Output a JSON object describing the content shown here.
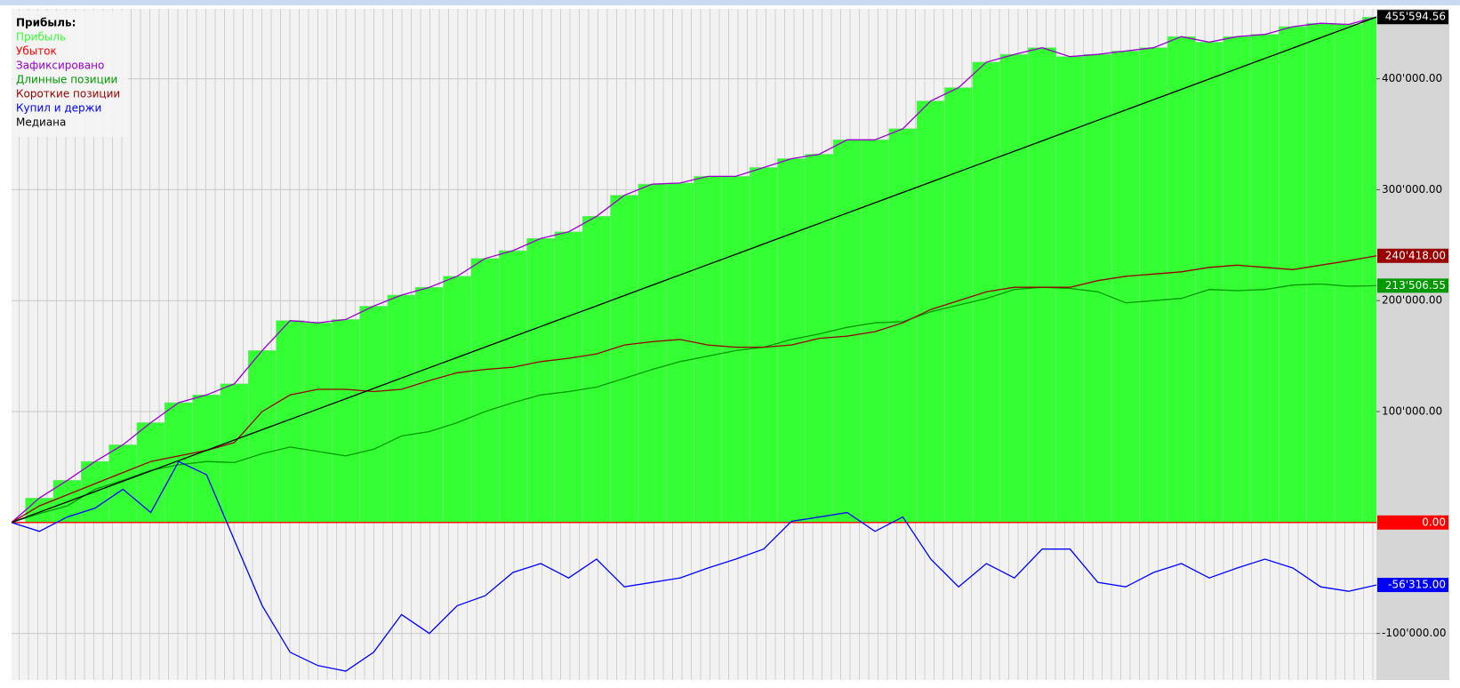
{
  "chart_data": {
    "type": "line",
    "legend_title": "Прибыль:",
    "legend": "top-left",
    "grid": true,
    "ylim": [
      -142000,
      463000
    ],
    "yticks": [
      {
        "value": -100000,
        "label": "-100'000.00"
      },
      {
        "value": 100000,
        "label": "100'000.00"
      },
      {
        "value": 200000,
        "label": "200'000.00"
      },
      {
        "value": 300000,
        "label": "300'000.00"
      },
      {
        "value": 400000,
        "label": "400'000.00"
      }
    ],
    "series": [
      {
        "name": "Прибыль",
        "color": "#33ff33",
        "style": "bars",
        "values": [
          0,
          22000,
          38000,
          55000,
          70000,
          90000,
          108000,
          115000,
          125000,
          155000,
          182000,
          180000,
          183000,
          195000,
          205000,
          212000,
          222000,
          238000,
          245000,
          256000,
          262000,
          276000,
          295000,
          305000,
          306000,
          312000,
          312000,
          320000,
          328000,
          332000,
          345000,
          345000,
          355000,
          380000,
          392000,
          415000,
          422000,
          428000,
          420000,
          422000,
          425000,
          428000,
          438000,
          433000,
          438000,
          440000,
          447000,
          450000,
          449000,
          455594.56
        ]
      },
      {
        "name": "Убыток",
        "color": "#ff0000",
        "style": "line",
        "end_label": "0.00",
        "values": [
          0,
          0,
          0,
          0,
          0,
          0,
          0,
          0,
          0,
          0,
          0,
          0,
          0,
          0,
          0,
          0,
          0,
          0,
          0,
          0,
          0,
          0,
          0,
          0,
          0,
          0,
          0,
          0,
          0,
          0,
          0,
          0,
          0,
          0,
          0,
          0,
          0,
          0,
          0,
          0,
          0,
          0,
          0,
          0,
          0,
          0,
          0,
          0,
          0,
          0
        ]
      },
      {
        "name": "Зафиксировано",
        "color": "#9900cc",
        "style": "line",
        "values": [
          0,
          22000,
          38000,
          55000,
          70000,
          90000,
          108000,
          115000,
          125000,
          155000,
          182000,
          180000,
          183000,
          195000,
          205000,
          212000,
          222000,
          238000,
          245000,
          256000,
          262000,
          276000,
          295000,
          305000,
          306000,
          312000,
          312000,
          320000,
          328000,
          332000,
          345000,
          345000,
          355000,
          380000,
          392000,
          415000,
          422000,
          428000,
          420000,
          422000,
          425000,
          428000,
          438000,
          433000,
          438000,
          440000,
          447000,
          450000,
          449000,
          455594.56
        ]
      },
      {
        "name": "Длинные позиции",
        "color": "#009900",
        "style": "line",
        "end_label": "213'506.55",
        "values": [
          0,
          8000,
          15000,
          30000,
          38000,
          47000,
          52000,
          55000,
          54000,
          62000,
          68000,
          64000,
          60000,
          66000,
          78000,
          82000,
          90000,
          100000,
          108000,
          115000,
          118000,
          122000,
          130000,
          138000,
          145000,
          150000,
          155000,
          158000,
          165000,
          170000,
          176000,
          180000,
          181000,
          190000,
          196000,
          202000,
          210000,
          212000,
          211000,
          208000,
          198000,
          200000,
          202000,
          210000,
          209000,
          210000,
          214000,
          215000,
          213000,
          213506.55
        ]
      },
      {
        "name": "Короткие позиции",
        "color": "#990000",
        "style": "line",
        "end_label": "240'418.00",
        "values": [
          0,
          15000,
          25000,
          35000,
          45000,
          55000,
          60000,
          65000,
          72000,
          100000,
          115000,
          120000,
          120000,
          118000,
          120000,
          128000,
          135000,
          138000,
          140000,
          145000,
          148000,
          152000,
          160000,
          163000,
          165000,
          160000,
          158000,
          158000,
          160000,
          166000,
          168000,
          172000,
          180000,
          192000,
          200000,
          208000,
          212000,
          212000,
          212000,
          218000,
          222000,
          224000,
          226000,
          230000,
          232000,
          230000,
          228000,
          232000,
          236000,
          240418
        ]
      },
      {
        "name": "Купил и держи",
        "color": "#0000ff",
        "style": "line",
        "end_label": "-56'315.00",
        "values": [
          0,
          -8000,
          5000,
          13000,
          30000,
          9000,
          55000,
          43000,
          -16000,
          -75000,
          -117000,
          -129000,
          -134000,
          -117000,
          -83000,
          -100000,
          -75000,
          -66000,
          -45000,
          -37000,
          -50000,
          -33000,
          -58000,
          -54000,
          -50000,
          -41000,
          -33000,
          -24000,
          1000,
          5000,
          9000,
          -8000,
          5000,
          -33000,
          -58000,
          -37000,
          -50000,
          -24000,
          -24000,
          -54000,
          -58000,
          -45000,
          -37000,
          -50000,
          -41000,
          -33000,
          -41000,
          -58000,
          -62000,
          -56315
        ]
      },
      {
        "name": "Медиана",
        "color": "#000000",
        "style": "line",
        "end_label": "455'594.56",
        "values": [
          0,
          9298,
          18596,
          27894,
          37191,
          46489,
          55787,
          65085,
          74383,
          83681,
          92979,
          102276,
          111574,
          120872,
          130170,
          139468,
          148766,
          158063,
          167361,
          176659,
          185957,
          195255,
          204553,
          213851,
          223148,
          232446,
          241744,
          251042,
          260340,
          269638,
          278935,
          288233,
          297531,
          306829,
          316127,
          325425,
          334723,
          344020,
          353318,
          362616,
          371914,
          381212,
          390510,
          399807,
          409105,
          418403,
          427701,
          436999,
          446297,
          455594.56
        ]
      }
    ]
  }
}
